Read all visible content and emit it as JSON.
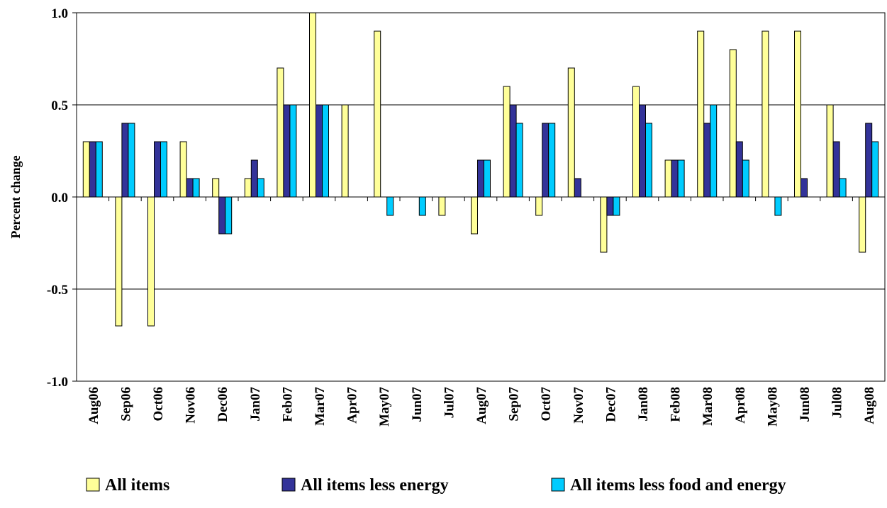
{
  "chart_data": {
    "type": "bar",
    "title": "",
    "xlabel": "",
    "ylabel": "Percent change",
    "ylim": [
      -1.0,
      1.0
    ],
    "y_ticks": [
      "1.0",
      "0.5",
      "0.0",
      "-0.5",
      "-1.0"
    ],
    "y_tick_values": [
      1.0,
      0.5,
      0.0,
      -0.5,
      -1.0
    ],
    "grid": true,
    "legend_position": "bottom",
    "categories": [
      "Aug06",
      "Sep06",
      "Oct06",
      "Nov06",
      "Dec06",
      "Jan07",
      "Feb07",
      "Mar07",
      "Apr07",
      "May07",
      "Jun07",
      "Jul07",
      "Aug07",
      "Sep07",
      "Oct07",
      "Nov07",
      "Dec07",
      "Jan08",
      "Feb08",
      "Mar08",
      "Apr08",
      "May08",
      "Jun08",
      "Jul08",
      "Aug08"
    ],
    "series": [
      {
        "name": "All items",
        "color": "#FFFF99",
        "values": [
          0.3,
          -0.7,
          -0.7,
          0.3,
          0.1,
          0.1,
          0.7,
          1.0,
          0.5,
          0.9,
          0.0,
          -0.1,
          -0.2,
          0.6,
          -0.1,
          0.7,
          -0.3,
          0.6,
          0.2,
          0.9,
          0.8,
          0.9,
          0.9,
          0.5,
          -0.3
        ]
      },
      {
        "name": "All items less energy",
        "color": "#333399",
        "values": [
          0.3,
          0.4,
          0.3,
          0.1,
          -0.2,
          0.2,
          0.5,
          0.5,
          0.0,
          0.0,
          0.0,
          0.0,
          0.2,
          0.5,
          0.4,
          0.1,
          -0.1,
          0.5,
          0.2,
          0.4,
          0.3,
          0.0,
          0.1,
          0.3,
          0.4
        ]
      },
      {
        "name": "All items less food and energy",
        "color": "#00CCFF",
        "values": [
          0.3,
          0.4,
          0.3,
          0.1,
          -0.2,
          0.1,
          0.5,
          0.5,
          0.0,
          -0.1,
          -0.1,
          0.0,
          0.2,
          0.4,
          0.4,
          0.0,
          -0.1,
          0.4,
          0.2,
          0.5,
          0.2,
          -0.1,
          0.0,
          0.1,
          0.3
        ]
      }
    ]
  }
}
